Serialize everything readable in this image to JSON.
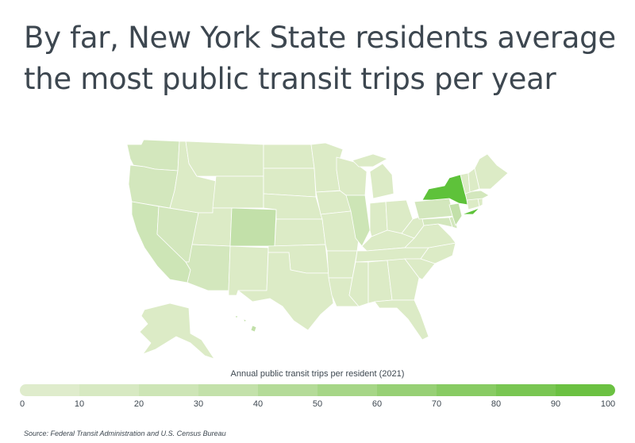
{
  "title": "By far, New York State residents average the most public transit trips per year",
  "legend": {
    "title": "Annual public transit trips per resident (2021)",
    "ticks": [
      "0",
      "10",
      "20",
      "30",
      "40",
      "50",
      "60",
      "70",
      "80",
      "90",
      "100"
    ],
    "colors": [
      "#dfeccc",
      "#d7e9c2",
      "#cde5b6",
      "#c3e1aa",
      "#b4db98",
      "#a6d687",
      "#97d075",
      "#88cb63",
      "#79c652",
      "#6bc142"
    ]
  },
  "colors": {
    "base": "#dcebc6",
    "light": "#d3e7bd",
    "medium": "#c2e0a9",
    "highlight": "#5ec23a"
  },
  "source": "Source: Federal Transit Administration and U.S. Census Bureau"
}
